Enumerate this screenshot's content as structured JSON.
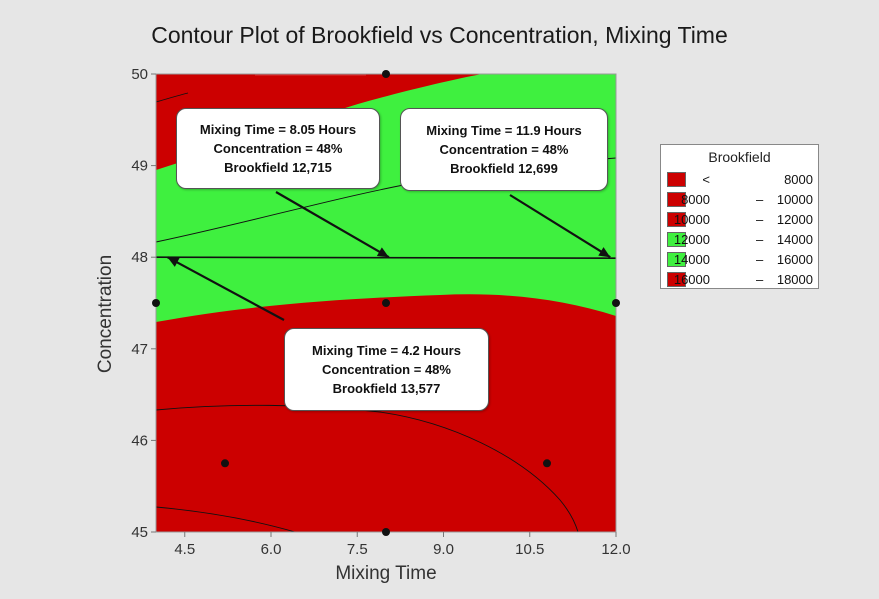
{
  "chart_data": {
    "type": "contour",
    "title": "Contour Plot of Brookfield vs Concentration, Mixing Time",
    "xlabel": "Mixing Time",
    "ylabel": "Concentration",
    "xlim": [
      4.0,
      12.0
    ],
    "ylim": [
      45,
      50
    ],
    "xticks": [
      "4.5",
      "6.0",
      "7.5",
      "9.0",
      "10.5",
      "12.0"
    ],
    "yticks": [
      "45",
      "46",
      "47",
      "48",
      "49",
      "50"
    ],
    "legend": {
      "title": "Brookfield",
      "position": "right",
      "entries": [
        {
          "low": "<",
          "high": "8000",
          "color": "#cc0000"
        },
        {
          "low": "8000",
          "high": "10000",
          "color": "#cc0000"
        },
        {
          "low": "10000",
          "high": "12000",
          "color": "#cc0000"
        },
        {
          "low": "12000",
          "high": "14000",
          "color": "#3ff03f"
        },
        {
          "low": "14000",
          "high": "16000",
          "color": "#3ff03f"
        },
        {
          "low": "16000",
          "high": "18000",
          "color": "#cc0000"
        }
      ]
    },
    "design_points": [
      {
        "x": 8.0,
        "y": 50.0
      },
      {
        "x": 4.0,
        "y": 47.5
      },
      {
        "x": 8.0,
        "y": 47.5
      },
      {
        "x": 12.0,
        "y": 47.5
      },
      {
        "x": 5.2,
        "y": 45.75
      },
      {
        "x": 10.8,
        "y": 45.75
      },
      {
        "x": 8.0,
        "y": 45.0
      }
    ],
    "reference_line": {
      "y": 48.0
    },
    "annotations": [
      {
        "lines": [
          "Mixing Time = 8.05 Hours",
          "Concentration = 48%",
          "Brookfield 12,715"
        ],
        "target": {
          "x": 8.05,
          "y": 48.0
        }
      },
      {
        "lines": [
          "Mixing Time = 11.9 Hours",
          "Concentration = 48%",
          "Brookfield 12,699"
        ],
        "target": {
          "x": 11.9,
          "y": 48.0
        }
      },
      {
        "lines": [
          "Mixing Time = 4.2 Hours",
          "Concentration = 48%",
          "Brookfield 13,577"
        ],
        "target": {
          "x": 4.2,
          "y": 48.0
        }
      }
    ],
    "colors": {
      "red": "#cc0000",
      "green": "#3ff03f",
      "background": "#e6e6e6"
    }
  }
}
